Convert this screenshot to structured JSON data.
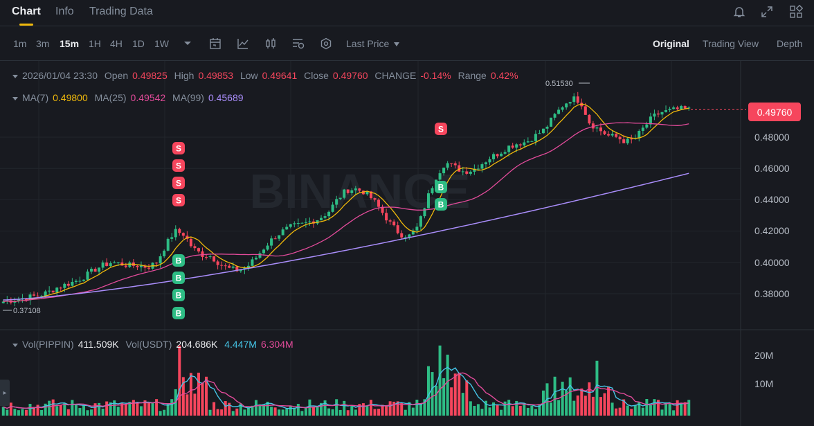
{
  "tabs": [
    {
      "label": "Chart",
      "active": true
    },
    {
      "label": "Info",
      "active": false
    },
    {
      "label": "Trading Data",
      "active": false
    }
  ],
  "top_icons": [
    "bell-icon",
    "expand-icon",
    "grid-layout-icon"
  ],
  "timeframes": [
    {
      "label": "1m",
      "active": false
    },
    {
      "label": "3m",
      "active": false
    },
    {
      "label": "15m",
      "active": true
    },
    {
      "label": "1H",
      "active": false
    },
    {
      "label": "4H",
      "active": false
    },
    {
      "label": "1D",
      "active": false
    },
    {
      "label": "1W",
      "active": false
    }
  ],
  "tools": [
    "more-intervals-icon",
    "calendar-icon",
    "indicators-icon",
    "candle-type-icon",
    "chart-settings-icon",
    "hexagon-settings-icon"
  ],
  "price_mode": "Last Price",
  "views": [
    {
      "label": "Original",
      "active": true
    },
    {
      "label": "Trading View",
      "active": false
    },
    {
      "label": "Depth",
      "active": false
    }
  ],
  "ohlc": {
    "datetime": "2026/01/04 23:30",
    "open_label": "Open",
    "open": "0.49825",
    "high_label": "High",
    "high": "0.49853",
    "low_label": "Low",
    "low": "0.49641",
    "close_label": "Close",
    "close": "0.49760",
    "change_label": "CHANGE",
    "change": "-0.14%",
    "range_label": "Range",
    "range": "0.42%"
  },
  "ma": {
    "ma7_label": "MA(7)",
    "ma7": "0.49800",
    "ma25_label": "MA(25)",
    "ma25": "0.49542",
    "ma99_label": "MA(99)",
    "ma99": "0.45689"
  },
  "price_axis": [
    "0.48000",
    "0.46000",
    "0.44000",
    "0.42000",
    "0.40000",
    "0.38000"
  ],
  "current_price": "0.49760",
  "high_marker": "0.51530",
  "low_marker": "0.37108",
  "volume": {
    "label_base": "Vol(PIPPIN)",
    "base": "411.509K",
    "label_quote": "Vol(USDT)",
    "quote": "204.686K",
    "ma_short": "4.447M",
    "ma_long": "6.304M",
    "axis": [
      "20M",
      "10M"
    ]
  },
  "signal_labels": {
    "sell": "S",
    "buy": "B"
  },
  "watermark": "BINANCE",
  "colors": {
    "up": "#2ebd85",
    "down": "#f6465d",
    "ma7": "#f0b90b",
    "ma25": "#e24b9a",
    "ma99": "#a98dfa",
    "vol_ma_short": "#45c4e6",
    "vol_ma_long": "#e24b9a",
    "accent": "#f0b90b"
  },
  "chart_data": {
    "type": "candlestick",
    "interval": "15m",
    "ohlc_close_approx": [
      0.375,
      0.376,
      0.377,
      0.378,
      0.379,
      0.381,
      0.384,
      0.386,
      0.388,
      0.391,
      0.395,
      0.398,
      0.4,
      0.399,
      0.398,
      0.398,
      0.397,
      0.4,
      0.411,
      0.42,
      0.418,
      0.409,
      0.405,
      0.404,
      0.399,
      0.396,
      0.395,
      0.397,
      0.403,
      0.41,
      0.416,
      0.42,
      0.423,
      0.424,
      0.426,
      0.428,
      0.432,
      0.44,
      0.446,
      0.447,
      0.445,
      0.44,
      0.432,
      0.424,
      0.418,
      0.417,
      0.423,
      0.441,
      0.455,
      0.464,
      0.461,
      0.458,
      0.459,
      0.463,
      0.467,
      0.47,
      0.474,
      0.476,
      0.477,
      0.481,
      0.485,
      0.493,
      0.5,
      0.505,
      0.503,
      0.489,
      0.485,
      0.481,
      0.48,
      0.477,
      0.479,
      0.486,
      0.493,
      0.496,
      0.497,
      0.498,
      0.4976
    ],
    "ma_series": [
      "MA(7)",
      "MA(25)",
      "MA(99)"
    ],
    "y_range": [
      0.37,
      0.52
    ],
    "volume_axis_max": "20M"
  }
}
